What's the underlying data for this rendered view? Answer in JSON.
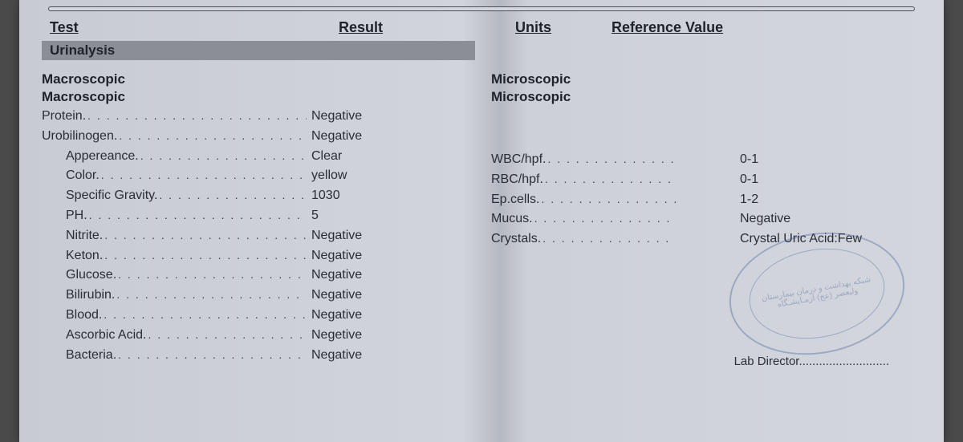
{
  "header": {
    "test": "Test",
    "result": "Result",
    "units": "Units",
    "reference": "Reference Value"
  },
  "section_band": "Urinalysis",
  "left": {
    "group1": "Macroscopic",
    "group2": "Macroscopic",
    "rows_top": [
      {
        "label": "Protein",
        "value": "Negative"
      },
      {
        "label": "Urobilinogen",
        "value": "Negative"
      }
    ],
    "rows_indent": [
      {
        "label": "Appereance",
        "value": "Clear"
      },
      {
        "label": "Color",
        "value": "yellow"
      },
      {
        "label": "Specific  Gravity",
        "value": "1030"
      },
      {
        "label": "PH",
        "value": "5"
      },
      {
        "label": "Nitrite",
        "value": "Negative"
      },
      {
        "label": "Keton",
        "value": "Negative"
      },
      {
        "label": "Glucose",
        "value": "Negative"
      },
      {
        "label": "Bilirubin",
        "value": "Negative"
      },
      {
        "label": "Blood",
        "value": "Negative"
      },
      {
        "label": "Ascorbic Acid",
        "value": "Negetive"
      },
      {
        "label": "Bacteria",
        "value": "Negative"
      }
    ]
  },
  "right": {
    "group1": "Microscopic",
    "group2": "Microscopic",
    "rows": [
      {
        "label": "WBC/hpf",
        "value": "0-1"
      },
      {
        "label": "RBC/hpf",
        "value": "0-1"
      },
      {
        "label": "Ep.cells",
        "value": "1-2"
      },
      {
        "label": "Mucus",
        "value": "Negative"
      },
      {
        "label": "Crystals",
        "value": "Crystal Uric Acid:Few"
      }
    ]
  },
  "stamp_text": "شبکه بهداشت و درمان\nبیمارستان ولیعصر (عج)\nآزمـایشـگاه",
  "lab_director": "Lab Director",
  "colors": {
    "text": "#1f222a",
    "band_bg": "#8b8e97",
    "paper_light": "#d3d6dd",
    "paper_shadow": "#b5b9c2",
    "stamp": "#3a5a9a"
  },
  "typography": {
    "header_fontsize": 18,
    "body_fontsize": 16,
    "group_fontsize": 17
  }
}
